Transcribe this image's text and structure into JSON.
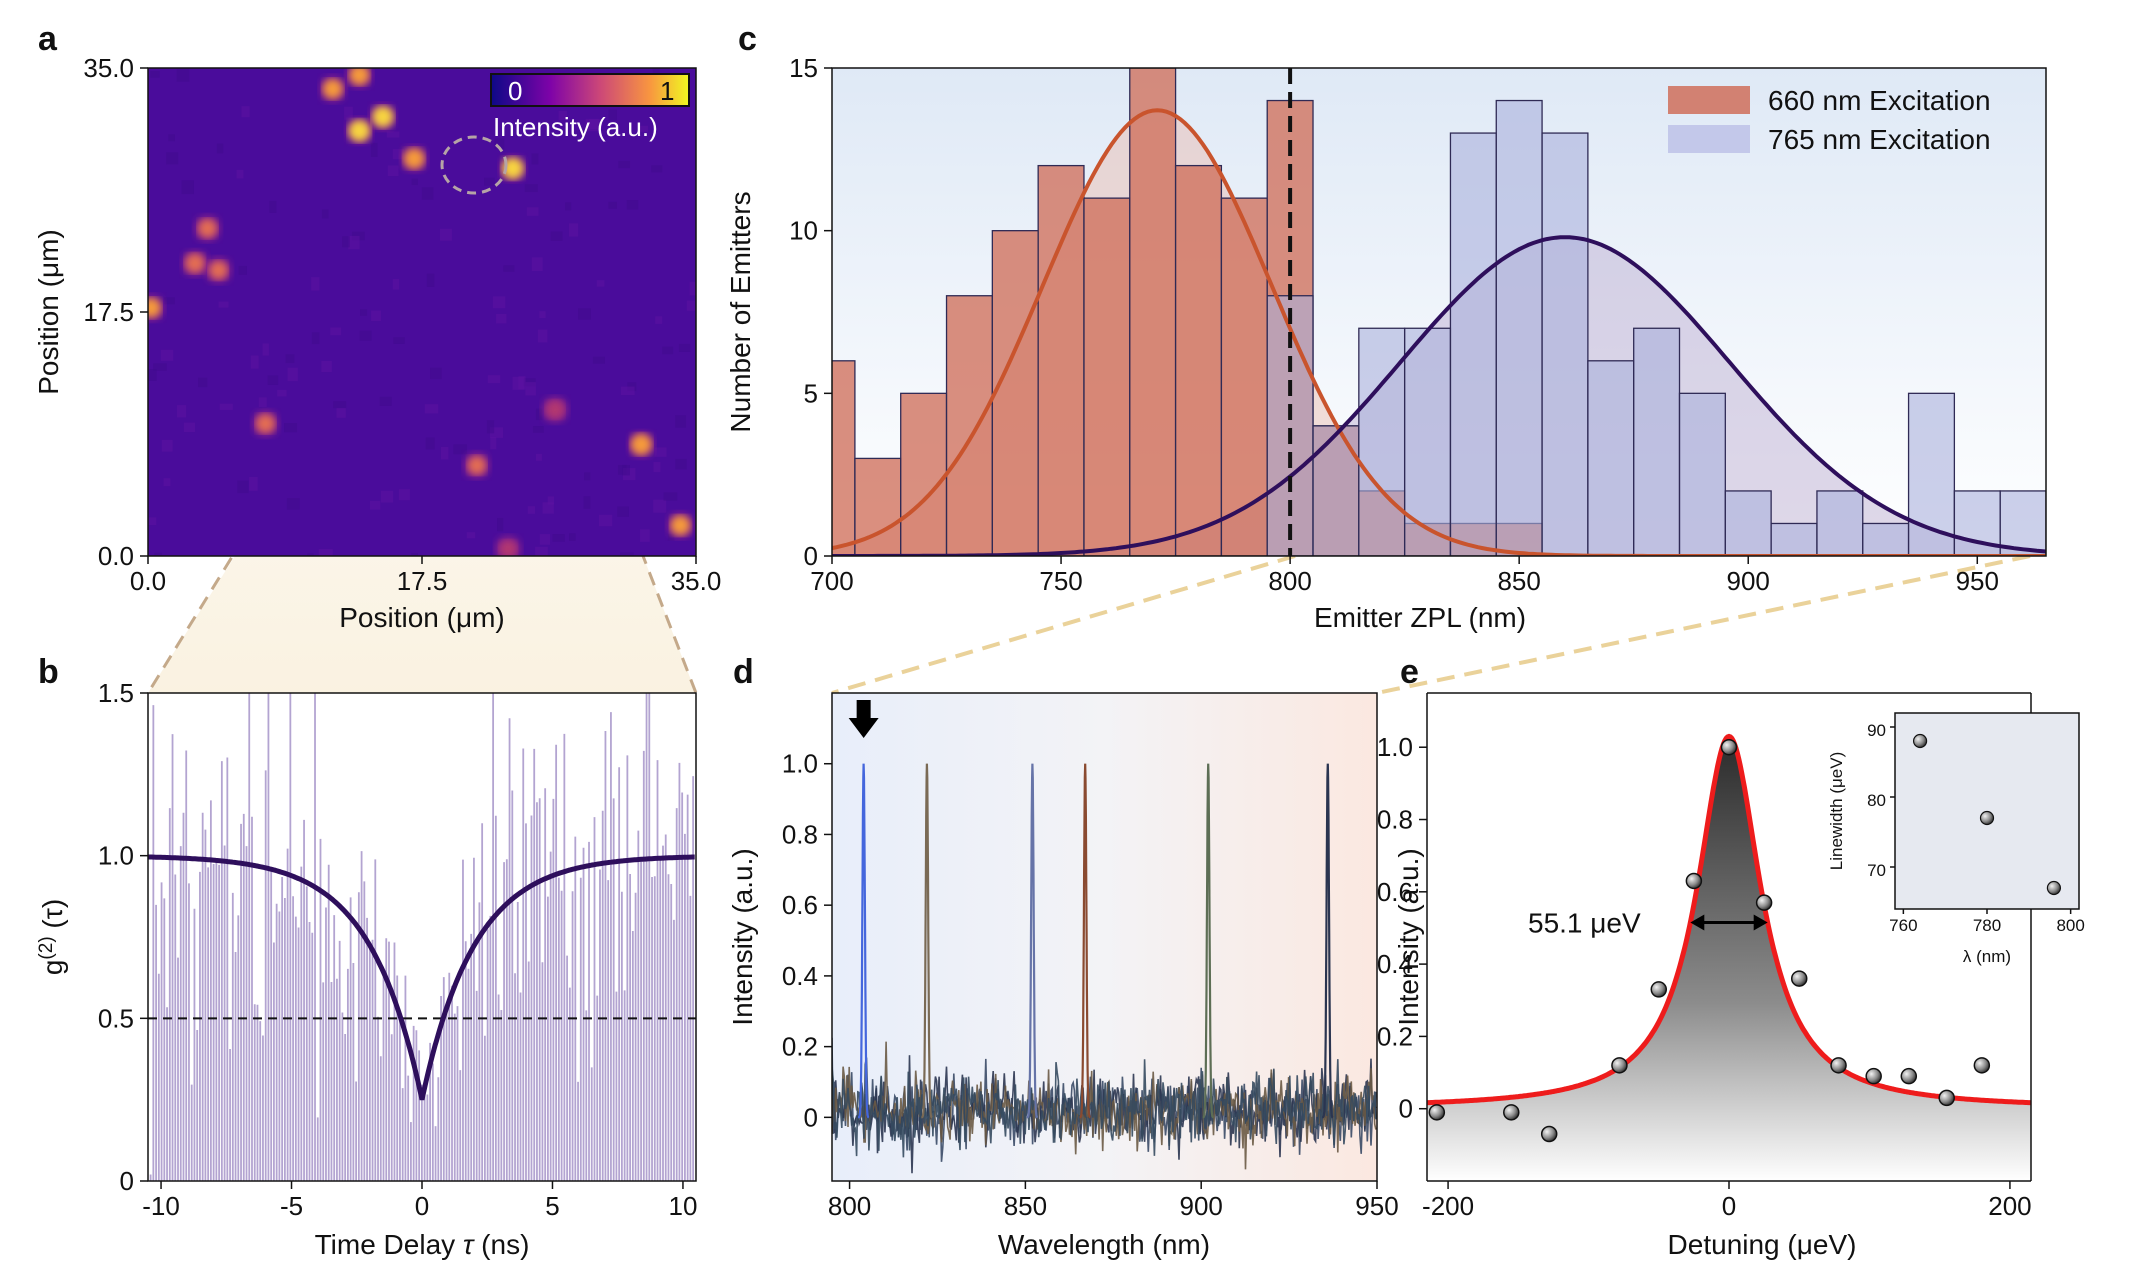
{
  "colors": {
    "heat_bg": "#4a0c9b",
    "red_hist": "#cf6f5b",
    "red_curve": "#c9542d",
    "blue_hist": "#aab0dc",
    "dark_curve": "#2e0f5c",
    "dashed": "#111111",
    "lorentz": "#ee1c1c",
    "arrow_link": "#ead29a"
  },
  "panels": {
    "a": {
      "letter": "a",
      "xlabel": "Position (μm)",
      "ylabel": "Position (μm)",
      "xticks": [
        "0.0",
        "17.5",
        "35.0"
      ],
      "yticks": [
        "0.0",
        "17.5",
        "35.0"
      ],
      "colorbar": {
        "min": "0",
        "max": "1",
        "label": "Intensity (a.u.)"
      }
    },
    "b": {
      "letter": "b",
      "xlabel": "Time Delay τ (ns)",
      "ylabel": "g(2) (τ)",
      "xticks": [
        "-10",
        "-5",
        "0",
        "5",
        "10"
      ],
      "yticks": [
        "0",
        "0.5",
        "1.0",
        "1.5"
      ]
    },
    "c": {
      "letter": "c",
      "xlabel": "Emitter ZPL (nm)",
      "ylabel": "Number of Emitters",
      "xticks": [
        "700",
        "750",
        "800",
        "850",
        "900",
        "950"
      ],
      "yticks": [
        "0",
        "5",
        "10",
        "15"
      ],
      "legend": [
        "660 nm Excitation",
        "765 nm Excitation"
      ]
    },
    "d": {
      "letter": "d",
      "xlabel": "Wavelength (nm)",
      "ylabel": "Intensity (a.u.)",
      "xticks": [
        "800",
        "850",
        "900",
        "950"
      ],
      "yticks": [
        "0",
        "0.2",
        "0.4",
        "0.6",
        "0.8",
        "1.0"
      ]
    },
    "e": {
      "letter": "e",
      "xlabel": "Detuning (μeV)",
      "ylabel": "Intensity (a.u.)",
      "xticks": [
        "-200",
        "0",
        "200"
      ],
      "yticks": [
        "0",
        "0.2",
        "0.4",
        "0.6",
        "0.8",
        "1.0"
      ],
      "fwhm_label": "55.1 μeV",
      "inset": {
        "xlabel": "λ (nm)",
        "ylabel": "Linewidth (μeV)",
        "xticks": [
          "760",
          "780",
          "800"
        ],
        "yticks": [
          "70",
          "80",
          "90"
        ]
      }
    }
  },
  "chart_data": [
    {
      "panel": "a",
      "type": "heatmap",
      "xlabel": "Position (μm)",
      "ylabel": "Position (μm)",
      "xlim": [
        0,
        35
      ],
      "ylim": [
        0,
        35
      ],
      "colorbar_range": [
        0,
        1
      ],
      "bright_spots": [
        {
          "x": 13.5,
          "y": 30.5,
          "i": 0.95
        },
        {
          "x": 15.0,
          "y": 31.5,
          "i": 0.9
        },
        {
          "x": 17.0,
          "y": 28.5,
          "i": 0.8
        },
        {
          "x": 23.3,
          "y": 27.8,
          "i": 0.95
        },
        {
          "x": 11.8,
          "y": 33.5,
          "i": 0.7
        },
        {
          "x": 13.5,
          "y": 34.5,
          "i": 0.75
        },
        {
          "x": 3.8,
          "y": 23.5,
          "i": 0.6
        },
        {
          "x": 3.0,
          "y": 21.0,
          "i": 0.65
        },
        {
          "x": 4.5,
          "y": 20.5,
          "i": 0.55
        },
        {
          "x": 0.2,
          "y": 17.8,
          "i": 0.7
        },
        {
          "x": 7.5,
          "y": 9.5,
          "i": 0.6
        },
        {
          "x": 21.0,
          "y": 6.5,
          "i": 0.55
        },
        {
          "x": 31.5,
          "y": 8.0,
          "i": 0.85
        },
        {
          "x": 26.0,
          "y": 10.5,
          "i": 0.5
        },
        {
          "x": 34.0,
          "y": 2.2,
          "i": 0.7
        },
        {
          "x": 23.0,
          "y": 0.5,
          "i": 0.4
        }
      ]
    },
    {
      "panel": "b",
      "type": "line",
      "title": "",
      "xlabel": "Time Delay τ (ns)",
      "ylabel": "g(2) (τ)",
      "xlim": [
        -10.5,
        10.5
      ],
      "ylim": [
        0,
        1.5
      ],
      "fit": {
        "g0": 0.25,
        "tau_ns": 2.0
      },
      "threshold": 0.5,
      "curve_samples": {
        "x": [
          -10,
          -5,
          -2,
          -1,
          0,
          1,
          2,
          5,
          10
        ],
        "y": [
          0.995,
          0.94,
          0.73,
          0.55,
          0.25,
          0.55,
          0.73,
          0.94,
          0.995
        ]
      }
    },
    {
      "panel": "c",
      "type": "bar",
      "xlabel": "Emitter ZPL (nm)",
      "ylabel": "Number of Emitters",
      "xlim": [
        700,
        965
      ],
      "ylim": [
        0,
        15
      ],
      "bin_width": 10,
      "series": [
        {
          "name": "660 nm Excitation",
          "bin_starts": [
            695,
            705,
            715,
            725,
            735,
            745,
            755,
            765,
            775,
            785,
            795,
            805,
            815,
            825,
            835,
            845
          ],
          "values": [
            6,
            3,
            5,
            8,
            10,
            12,
            11,
            15,
            12,
            11,
            14,
            4,
            2,
            1,
            1,
            1
          ],
          "fit": {
            "mu": 771,
            "sigma": 25,
            "amp": 13.7
          }
        },
        {
          "name": "765 nm Excitation",
          "bin_starts": [
            795,
            805,
            815,
            825,
            835,
            845,
            855,
            865,
            875,
            885,
            895,
            905,
            915,
            925,
            935,
            945,
            955
          ],
          "values": [
            8,
            4,
            7,
            7,
            13,
            14,
            13,
            6,
            7,
            5,
            2,
            1,
            2,
            1,
            5,
            2,
            2
          ],
          "fit": {
            "mu": 860,
            "sigma": 36,
            "amp": 9.8
          }
        }
      ],
      "divider_x": 800
    },
    {
      "panel": "d",
      "type": "line",
      "xlabel": "Wavelength (nm)",
      "ylabel": "Intensity (a.u.)",
      "xlim": [
        795,
        950
      ],
      "ylim": [
        -0.18,
        1.2
      ],
      "noise_sigma": 0.05,
      "peaks": [
        {
          "x": 804,
          "y": 1.0,
          "color": "#4466dd"
        },
        {
          "x": 822,
          "y": 1.0,
          "color": "#7a6a55"
        },
        {
          "x": 852,
          "y": 1.0,
          "color": "#6674a8"
        },
        {
          "x": 867,
          "y": 1.0,
          "color": "#8a4a30"
        },
        {
          "x": 902,
          "y": 1.0,
          "color": "#5d6e55"
        },
        {
          "x": 936,
          "y": 1.0,
          "color": "#2b3550"
        }
      ],
      "marker_x": 804
    },
    {
      "panel": "e",
      "type": "scatter",
      "xlabel": "Detuning (μeV)",
      "ylabel": "Intensity (a.u.)",
      "xlim": [
        -215,
        215
      ],
      "ylim": [
        -0.2,
        1.15
      ],
      "points": {
        "x": [
          -208,
          -155,
          -128,
          -78,
          -50,
          -25,
          0,
          25,
          50,
          78,
          103,
          128,
          155,
          180
        ],
        "y": [
          -0.01,
          -0.01,
          -0.07,
          0.12,
          0.33,
          0.63,
          1.0,
          0.57,
          0.36,
          0.12,
          0.09,
          0.09,
          0.03,
          0.12
        ]
      },
      "fit": {
        "type": "lorentzian",
        "fwhm": 55.1,
        "amp": 1.03,
        "offset": 0.0
      },
      "inset": {
        "type": "scatter",
        "xlabel": "λ (nm)",
        "ylabel": "Linewidth (μeV)",
        "xlim": [
          758,
          802
        ],
        "ylim": [
          64,
          92
        ],
        "x": [
          764,
          780,
          796
        ],
        "y": [
          88,
          77,
          67
        ]
      }
    }
  ]
}
